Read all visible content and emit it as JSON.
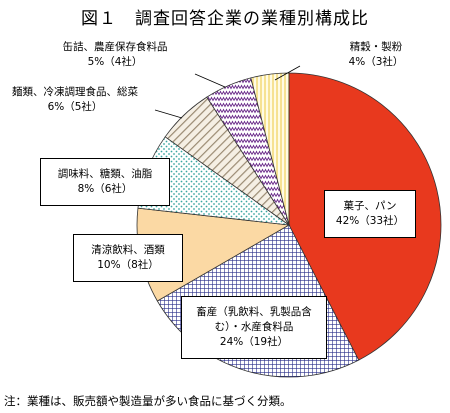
{
  "title": "図１　調査回答企業の業種別構成比",
  "note": "注：業種は、販売額や製造量が多い食品に基づく分類。",
  "chart_data": {
    "type": "pie",
    "title": "図１　調査回答企業の業種別構成比",
    "slices": [
      {
        "name": "菓子、パン",
        "value": 42,
        "count": 33,
        "label": "42%（33社）",
        "fill": "#e8391e",
        "pattern": "solid"
      },
      {
        "name": "畜産（乳飲料、乳製品含む）・水産食料品",
        "value": 24,
        "count": 19,
        "label": "24%（19社）",
        "fill": "#2a2f8a",
        "pattern": "grid"
      },
      {
        "name": "清涼飲料、酒類",
        "value": 10,
        "count": 8,
        "label": "10%（8社）",
        "fill": "#fbd9a4",
        "pattern": "solid"
      },
      {
        "name": "調味料、糖類、油脂",
        "value": 8,
        "count": 6,
        "label": "8%（6社）",
        "fill": "#3aa6a0",
        "pattern": "dots"
      },
      {
        "name": "麺類、冷凍調理食品、総菜",
        "value": 6,
        "count": 5,
        "label": "6%（5社）",
        "fill": "#9a8a72",
        "pattern": "hatch"
      },
      {
        "name": "缶詰、農産保存食料品",
        "value": 5,
        "count": 4,
        "label": "5%（4社）",
        "fill": "#6a2a8a",
        "pattern": "zigzag"
      },
      {
        "name": "精穀・製粉",
        "value": 4,
        "count": 3,
        "label": "4%（3社）",
        "fill": "#f2d770",
        "pattern": "vlines"
      }
    ]
  },
  "labels": {
    "confectionery": {
      "l1": "菓子、パン",
      "l2": "42%（33社）"
    },
    "livestock": {
      "l1": "畜産（乳飲料、乳製品含",
      "l2": "む）・水産食料品",
      "l3": "24%（19社）"
    },
    "beverages": {
      "l1": "清涼飲料、酒類",
      "l2": "10%（8社）"
    },
    "seasonings": {
      "l1": "調味料、糖類、油脂",
      "l2": "8%（6社）"
    },
    "noodles": {
      "l1": "麺類、冷凍調理食品、総菜",
      "l2": "6%（5社）"
    },
    "canned": {
      "l1": "缶詰、農産保存食料品",
      "l2": "5%（4社）"
    },
    "milling": {
      "l1": "精穀・製粉",
      "l2": "4%（3社）"
    }
  }
}
